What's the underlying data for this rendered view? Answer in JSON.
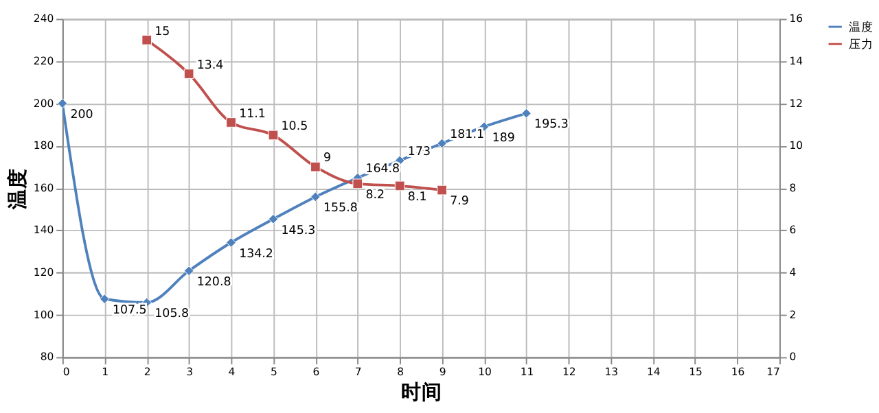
{
  "chart_data": {
    "type": "line",
    "xlabel": "时间",
    "ylabel": "温度",
    "x": [
      0,
      1,
      2,
      3,
      4,
      5,
      6,
      7,
      8,
      9,
      10,
      11
    ],
    "xlim": [
      0,
      17
    ],
    "xticks": [
      0,
      1,
      2,
      3,
      4,
      5,
      6,
      7,
      8,
      9,
      10,
      11,
      12,
      13,
      14,
      15,
      16,
      17
    ],
    "ylim": [
      80,
      240
    ],
    "yticks": [
      80,
      100,
      120,
      140,
      160,
      180,
      200,
      220,
      240
    ],
    "y2lim": [
      0,
      16
    ],
    "y2ticks": [
      0,
      2,
      4,
      6,
      8,
      10,
      12,
      14,
      16
    ],
    "series": [
      {
        "name": "温度",
        "color": "#4f81bd",
        "marker": "diamond",
        "values": [
          200,
          107.5,
          105.8,
          120.8,
          134.2,
          145.3,
          155.8,
          164.8,
          173,
          181.1,
          189,
          195.3
        ]
      },
      {
        "name": "压力",
        "color": "#c0504d",
        "marker": "square",
        "axis": "y2",
        "x": [
          2,
          3,
          4,
          5,
          6,
          7,
          8,
          9
        ],
        "values": [
          15,
          13.4,
          11.1,
          10.5,
          9,
          8.2,
          8.1,
          7.9
        ]
      }
    ],
    "data_labels": true,
    "grid": true,
    "legend": "right"
  }
}
